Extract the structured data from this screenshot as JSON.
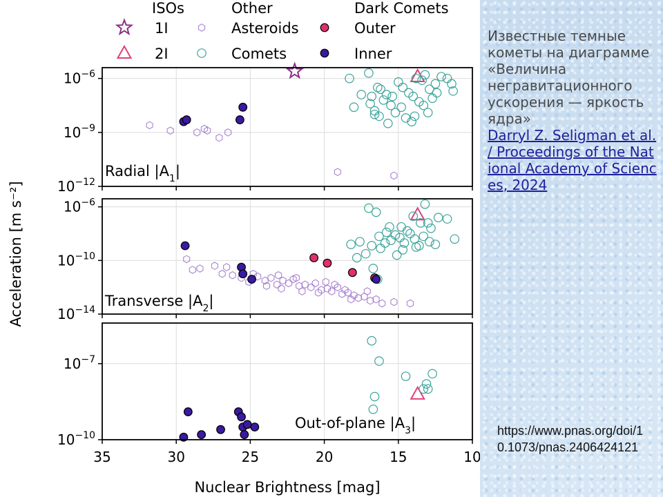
{
  "side": {
    "description": "Известные темные кометы на диаграмме «Величина негравитационного ускорения — яркость ядра»",
    "credit": "Darryl Z. Seligman et al. / Proceedings of the National Academy of Sciences, 2024",
    "source_url": "https://www.pnas.org/doi/10.1073/pnas.2406424121"
  },
  "colors": {
    "iso": "#8b2f8b",
    "iso_2i": "#e0407a",
    "asteroids": "#9a6fc9",
    "comets": "#3aa39a",
    "outer": "#e0306a",
    "inner": "#3a1aa0"
  },
  "chart_data": {
    "type": "scatter",
    "xlabel": "Nuclear Brightness [mag]",
    "ylabel": "Acceleration [m s⁻²]",
    "xlim": [
      35,
      10
    ],
    "x_ticks": [
      "35",
      "30",
      "25",
      "20",
      "15",
      "10"
    ],
    "grid": true,
    "legend": {
      "placement": "top",
      "groups": [
        {
          "title": "ISOs",
          "entries": [
            "1I",
            "2I"
          ]
        },
        {
          "title": "Other",
          "entries": [
            "Asteroids",
            "Comets"
          ]
        },
        {
          "title": "Dark Comets",
          "entries": [
            "Outer",
            "Inner"
          ]
        }
      ]
    },
    "panels": [
      {
        "label": "Radial |A1|",
        "yscale": "log",
        "ylim_exp": [
          -12,
          -5.4
        ],
        "y_ticks_exp": [
          -6,
          -9,
          -12
        ],
        "series": [
          {
            "name": "1I",
            "marker": "star",
            "points": [
              [
                22.0,
                -5.6
              ]
            ]
          },
          {
            "name": "2I",
            "marker": "triangle",
            "points": [
              [
                13.7,
                -5.9
              ]
            ]
          },
          {
            "name": "Asteroids",
            "marker": "hexagon",
            "points": [
              [
                31.8,
                -8.6
              ],
              [
                30.4,
                -8.9
              ],
              [
                28.6,
                -9.0
              ],
              [
                28.1,
                -8.8
              ],
              [
                27.9,
                -8.9
              ],
              [
                27.1,
                -9.3
              ],
              [
                26.5,
                -9.0
              ],
              [
                19.1,
                -11.2
              ],
              [
                15.3,
                -11.4
              ]
            ]
          },
          {
            "name": "Comets",
            "marker": "circle",
            "points": [
              [
                17.0,
                -5.7
              ],
              [
                16.8,
                -7.0
              ],
              [
                16.4,
                -6.5
              ],
              [
                16.2,
                -6.6
              ],
              [
                15.8,
                -6.9
              ],
              [
                15.4,
                -7.0
              ],
              [
                15.0,
                -6.2
              ],
              [
                14.7,
                -6.5
              ],
              [
                14.3,
                -6.8
              ],
              [
                13.8,
                -6.0
              ],
              [
                13.4,
                -6.1
              ],
              [
                13.2,
                -5.8
              ],
              [
                12.9,
                -6.6
              ],
              [
                12.5,
                -6.3
              ],
              [
                12.1,
                -5.9
              ],
              [
                11.7,
                -6.0
              ],
              [
                11.4,
                -6.3
              ],
              [
                16.9,
                -7.4
              ],
              [
                16.6,
                -7.8
              ],
              [
                16.3,
                -8.1
              ],
              [
                15.7,
                -8.5
              ],
              [
                15.2,
                -7.9
              ],
              [
                14.8,
                -7.6
              ],
              [
                14.5,
                -8.2
              ],
              [
                14.1,
                -8.4
              ],
              [
                13.6,
                -7.3
              ],
              [
                13.0,
                -7.9
              ],
              [
                12.7,
                -7.1
              ],
              [
                17.5,
                -6.9
              ],
              [
                18.0,
                -7.6
              ],
              [
                16.0,
                -7.2
              ],
              [
                15.5,
                -7.5
              ],
              [
                14.0,
                -7.0
              ],
              [
                13.3,
                -7.5
              ],
              [
                12.4,
                -6.8
              ],
              [
                11.3,
                -6.7
              ],
              [
                16.6,
                -8.0
              ],
              [
                13.9,
                -8.1
              ],
              [
                18.3,
                -6.0
              ]
            ]
          },
          {
            "name": "Inner",
            "marker": "filled-circle",
            "points": [
              [
                29.5,
                -8.4
              ],
              [
                29.3,
                -8.3
              ],
              [
                25.7,
                -8.3
              ],
              [
                25.5,
                -7.6
              ]
            ]
          }
        ]
      },
      {
        "label": "Transverse |A2|",
        "yscale": "log",
        "ylim_exp": [
          -14,
          -5.4
        ],
        "y_ticks_exp": [
          -6,
          -10,
          -14
        ],
        "series": [
          {
            "name": "2I",
            "marker": "triangle",
            "points": [
              [
                13.7,
                -6.6
              ]
            ]
          },
          {
            "name": "Asteroids",
            "marker": "hexagon",
            "points": [
              [
                29.3,
                -9.9
              ],
              [
                28.9,
                -10.7
              ],
              [
                28.4,
                -10.6
              ],
              [
                27.4,
                -10.4
              ],
              [
                26.9,
                -11.0
              ],
              [
                26.2,
                -11.1
              ],
              [
                25.6,
                -11.3
              ],
              [
                25.1,
                -11.6
              ],
              [
                24.5,
                -11.2
              ],
              [
                24.0,
                -11.5
              ],
              [
                23.6,
                -11.3
              ],
              [
                23.2,
                -11.8
              ],
              [
                22.8,
                -11.5
              ],
              [
                22.4,
                -11.7
              ],
              [
                22.1,
                -11.4
              ],
              [
                21.7,
                -11.9
              ],
              [
                21.3,
                -11.8
              ],
              [
                20.9,
                -12.0
              ],
              [
                20.6,
                -11.7
              ],
              [
                20.2,
                -12.2
              ],
              [
                19.8,
                -12.1
              ],
              [
                19.5,
                -12.3
              ],
              [
                19.1,
                -12.0
              ],
              [
                18.8,
                -12.5
              ],
              [
                18.4,
                -12.4
              ],
              [
                18.0,
                -12.6
              ],
              [
                17.7,
                -12.8
              ],
              [
                17.3,
                -12.7
              ],
              [
                16.9,
                -13.0
              ],
              [
                16.5,
                -12.9
              ],
              [
                16.1,
                -13.2
              ],
              [
                15.3,
                -13.1
              ],
              [
                14.2,
                -13.2
              ],
              [
                24.8,
                -11.0
              ],
              [
                23.9,
                -11.9
              ],
              [
                22.9,
                -12.1
              ],
              [
                21.9,
                -11.3
              ],
              [
                20.4,
                -12.4
              ],
              [
                19.3,
                -11.8
              ],
              [
                18.2,
                -12.9
              ],
              [
                17.1,
                -12.3
              ],
              [
                26.6,
                -10.5
              ],
              [
                23.1,
                -11.1
              ],
              [
                21.5,
                -12.3
              ],
              [
                19.9,
                -11.6
              ],
              [
                18.6,
                -12.2
              ]
            ]
          },
          {
            "name": "Comets",
            "marker": "circle",
            "points": [
              [
                17.0,
                -6.1
              ],
              [
                16.5,
                -6.4
              ],
              [
                15.8,
                -7.9
              ],
              [
                15.2,
                -8.1
              ],
              [
                14.8,
                -7.5
              ],
              [
                14.4,
                -7.8
              ],
              [
                14.0,
                -6.7
              ],
              [
                13.5,
                -7.2
              ],
              [
                13.2,
                -5.8
              ],
              [
                12.8,
                -7.6
              ],
              [
                12.3,
                -6.8
              ],
              [
                11.7,
                -6.9
              ],
              [
                11.2,
                -8.4
              ],
              [
                16.8,
                -8.9
              ],
              [
                16.3,
                -8.2
              ],
              [
                15.9,
                -8.7
              ],
              [
                15.5,
                -8.5
              ],
              [
                14.9,
                -8.3
              ],
              [
                14.6,
                -8.7
              ],
              [
                14.2,
                -8.0
              ],
              [
                13.9,
                -8.4
              ],
              [
                13.6,
                -8.9
              ],
              [
                13.3,
                -8.2
              ],
              [
                12.9,
                -8.6
              ],
              [
                12.5,
                -8.8
              ],
              [
                17.6,
                -8.6
              ],
              [
                18.2,
                -8.8
              ],
              [
                17.2,
                -9.5
              ],
              [
                16.7,
                -10.6
              ],
              [
                16.2,
                -9.1
              ],
              [
                15.6,
                -7.5
              ],
              [
                14.7,
                -9.2
              ],
              [
                13.8,
                -9.0
              ],
              [
                13.0,
                -7.2
              ],
              [
                17.8,
                -9.8
              ],
              [
                16.4,
                -11.4
              ],
              [
                15.1,
                -9.6
              ]
            ]
          },
          {
            "name": "Outer",
            "marker": "filled-circle",
            "points": [
              [
                20.7,
                -9.8
              ],
              [
                19.8,
                -10.2
              ],
              [
                18.1,
                -10.9
              ],
              [
                16.6,
                -11.3
              ]
            ]
          },
          {
            "name": "Inner",
            "marker": "filled-circle",
            "points": [
              [
                29.4,
                -8.9
              ],
              [
                25.6,
                -10.5
              ],
              [
                25.5,
                -11.0
              ],
              [
                24.9,
                -11.4
              ],
              [
                16.5,
                -11.4
              ]
            ]
          }
        ]
      },
      {
        "label": "Out-of-plane |A3|",
        "yscale": "log",
        "ylim_exp": [
          -10,
          -5.4
        ],
        "y_ticks_exp": [
          -7,
          -10
        ],
        "series": [
          {
            "name": "2I",
            "marker": "triangle",
            "points": [
              [
                13.7,
                -8.2
              ]
            ]
          },
          {
            "name": "Comets",
            "marker": "circle",
            "points": [
              [
                16.8,
                -6.1
              ],
              [
                16.3,
                -6.9
              ],
              [
                16.6,
                -8.3
              ],
              [
                16.7,
                -8.8
              ],
              [
                14.5,
                -7.5
              ],
              [
                13.3,
                -8.0
              ],
              [
                13.0,
                -8.0
              ],
              [
                12.7,
                -7.4
              ],
              [
                13.1,
                -7.8
              ]
            ]
          },
          {
            "name": "Inner",
            "marker": "filled-circle",
            "points": [
              [
                29.5,
                -9.9
              ],
              [
                29.2,
                -8.9
              ],
              [
                28.3,
                -9.8
              ],
              [
                27.0,
                -9.6
              ],
              [
                25.8,
                -8.9
              ],
              [
                25.5,
                -9.5
              ],
              [
                25.6,
                -9.1
              ],
              [
                25.2,
                -9.4
              ],
              [
                24.7,
                -9.5
              ],
              [
                25.4,
                -9.8
              ]
            ]
          }
        ]
      }
    ]
  }
}
